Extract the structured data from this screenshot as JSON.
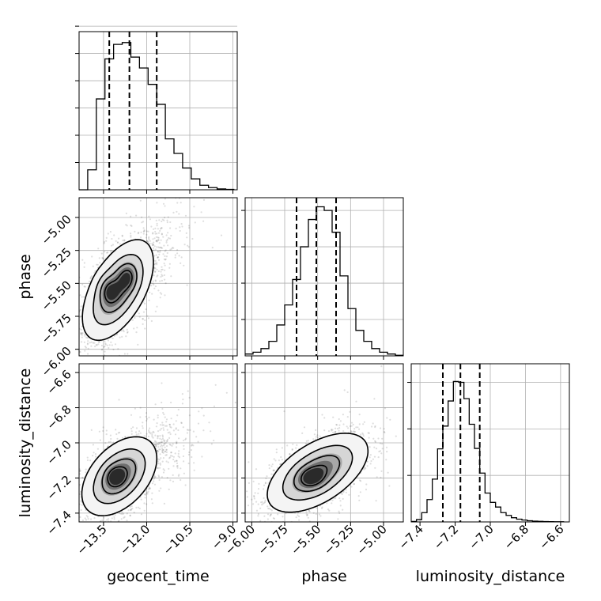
{
  "chart_data": {
    "type": "corner",
    "parameters": [
      {
        "name": "geocent_time",
        "label": "geocent_time",
        "range": [
          -14.35,
          -8.85
        ],
        "ticks": [
          -13.5,
          -12.0,
          -10.5,
          -9.0
        ],
        "tick_labels": [
          "−13.5",
          "−12.0",
          "−10.5",
          "−9.0"
        ],
        "quantiles": [
          -13.3,
          -12.6,
          -11.65
        ],
        "hist_edges": [
          -14.35,
          -14.05,
          -13.75,
          -13.45,
          -13.15,
          -12.85,
          -12.55,
          -12.25,
          -11.95,
          -11.65,
          -11.35,
          -11.05,
          -10.75,
          -10.45,
          -10.15,
          -9.85,
          -9.55,
          -9.25,
          -8.95
        ],
        "hist_values": [
          0.0,
          0.11,
          0.5,
          0.72,
          0.8,
          0.81,
          0.73,
          0.67,
          0.58,
          0.47,
          0.28,
          0.2,
          0.12,
          0.06,
          0.025,
          0.012,
          0.005,
          0.002
        ]
      },
      {
        "name": "phase",
        "label": "phase",
        "range": [
          -6.05,
          -4.85
        ],
        "ticks": [
          -6.0,
          -5.75,
          -5.5,
          -5.25,
          -5.0
        ],
        "tick_labels": [
          "−6.00",
          "−5.75",
          "−5.50",
          "−5.25",
          "−5.00"
        ],
        "quantiles": [
          -5.66,
          -5.51,
          -5.36
        ],
        "hist_edges": [
          -6.05,
          -5.99,
          -5.93,
          -5.87,
          -5.81,
          -5.75,
          -5.69,
          -5.63,
          -5.57,
          -5.51,
          -5.45,
          -5.39,
          -5.33,
          -5.27,
          -5.21,
          -5.15,
          -5.09,
          -5.03,
          -4.97,
          -4.91,
          -4.85
        ],
        "hist_values": [
          0.01,
          0.02,
          0.04,
          0.08,
          0.17,
          0.28,
          0.42,
          0.6,
          0.75,
          0.82,
          0.8,
          0.68,
          0.44,
          0.26,
          0.14,
          0.08,
          0.04,
          0.02,
          0.01,
          0.003
        ]
      },
      {
        "name": "luminosity_distance",
        "label": "luminosity_distance",
        "range": [
          -7.45,
          -6.55
        ],
        "ticks": [
          -7.4,
          -7.2,
          -7.0,
          -6.8,
          -6.6
        ],
        "tick_labels": [
          "−7.4",
          "−7.2",
          "−7.0",
          "−6.8",
          "−6.6"
        ],
        "quantiles": [
          -7.27,
          -7.17,
          -7.06
        ],
        "hist_edges": [
          -7.45,
          -7.42,
          -7.39,
          -7.36,
          -7.33,
          -7.3,
          -7.27,
          -7.24,
          -7.21,
          -7.18,
          -7.15,
          -7.12,
          -7.09,
          -7.06,
          -7.03,
          -7.0,
          -6.97,
          -6.94,
          -6.91,
          -6.88,
          -6.85,
          -6.82,
          -6.79,
          -6.76,
          -6.73,
          -6.7,
          -6.67,
          -6.64,
          -6.61,
          -6.58
        ],
        "hist_values": [
          0.01,
          0.05,
          0.2,
          0.48,
          0.92,
          1.57,
          2.06,
          2.6,
          3.02,
          3.0,
          2.65,
          2.1,
          1.58,
          1.05,
          0.62,
          0.42,
          0.32,
          0.2,
          0.14,
          0.09,
          0.06,
          0.04,
          0.025,
          0.017,
          0.012,
          0.008,
          0.006,
          0.004,
          0.003
        ]
      }
    ],
    "hist_ticks": [
      [
        0.15,
        0.3,
        0.45,
        0.6,
        0.75,
        0.9
      ],
      [
        0.2,
        0.4,
        0.6,
        0.8
      ],
      [
        1.0,
        2.0,
        3.0
      ]
    ],
    "hist_max": [
      0.87,
      0.87,
      3.4
    ],
    "correlations": [
      {
        "x": 0,
        "y": 1,
        "center": [
          -13.0,
          -5.55
        ],
        "sigma": [
          0.55,
          0.17
        ],
        "rho": 0.55,
        "peaks": [
          [
            -13.35,
            -5.55
          ],
          [
            -12.65,
            -5.45
          ]
        ]
      },
      {
        "x": 0,
        "y": 2,
        "center": [
          -12.95,
          -7.19
        ],
        "sigma": [
          0.58,
          0.1
        ],
        "rho": 0.45,
        "peaks": [
          [
            -13.1,
            -7.19
          ]
        ]
      },
      {
        "x": 1,
        "y": 2,
        "center": [
          -5.5,
          -7.17
        ],
        "sigma": [
          0.17,
          0.1
        ],
        "rho": 0.55,
        "peaks": [
          [
            -5.55,
            -7.2
          ]
        ]
      }
    ],
    "grid": true,
    "quantile_levels": [
      0.16,
      0.5,
      0.84
    ]
  }
}
